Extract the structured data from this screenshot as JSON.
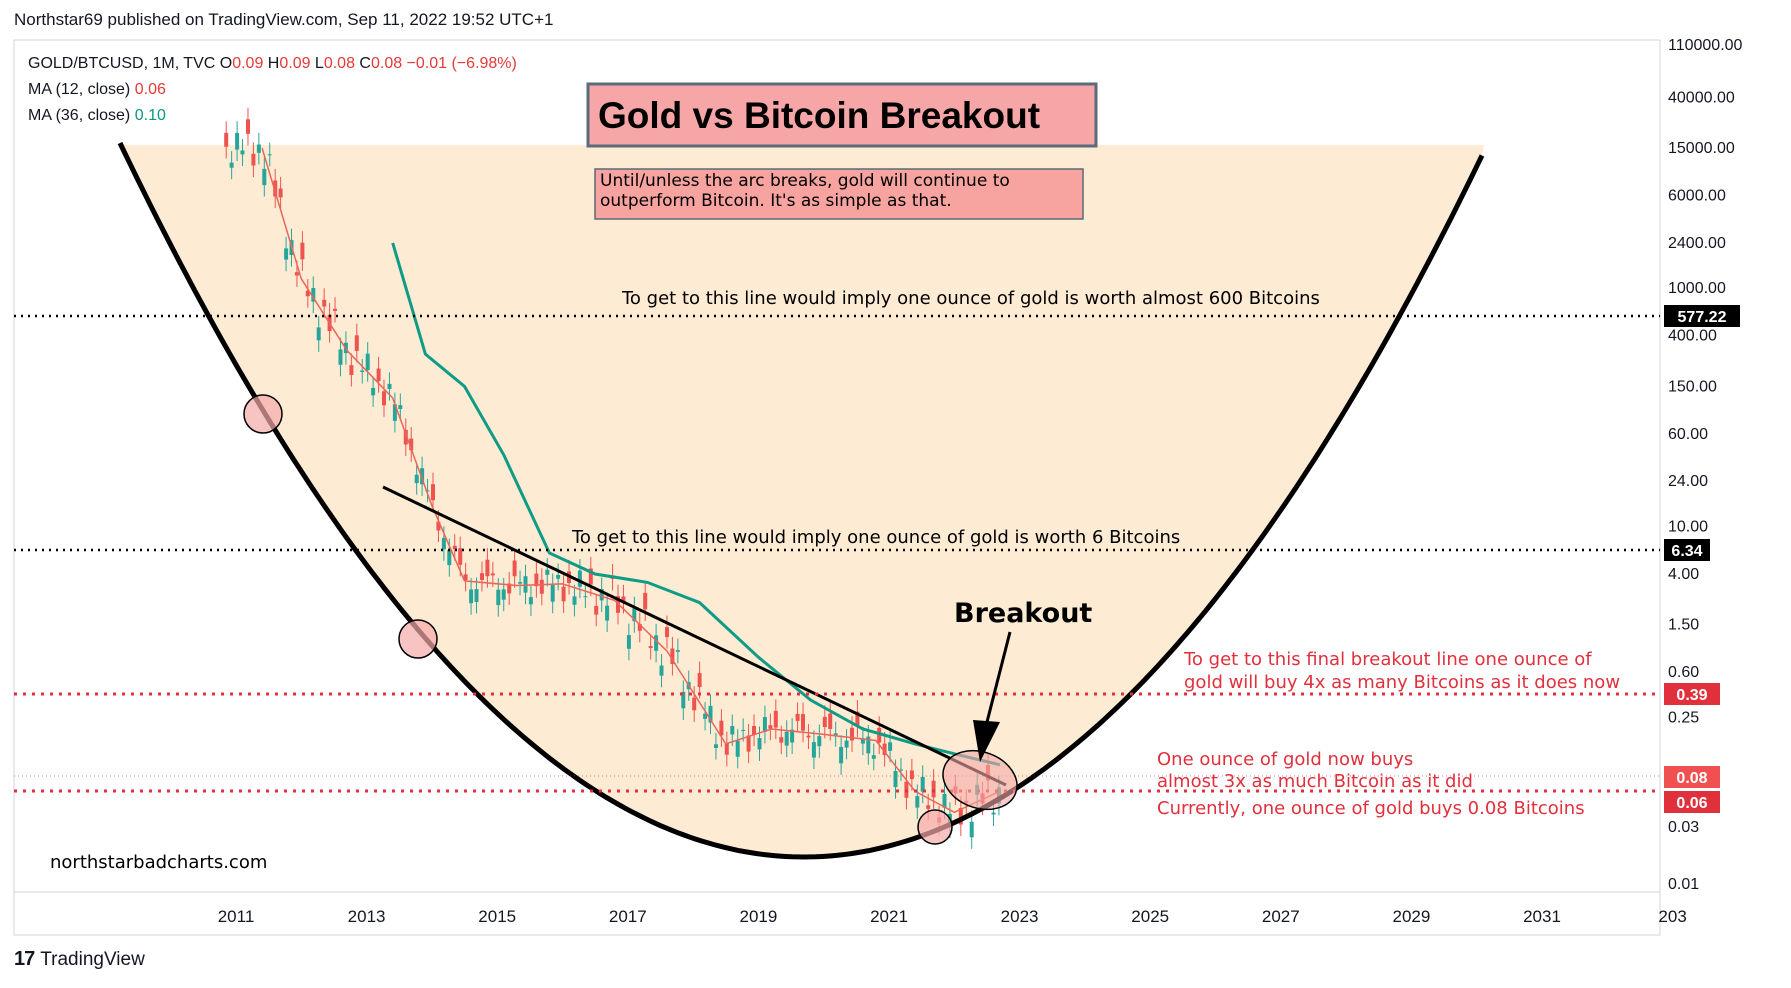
{
  "header": {
    "published": "Northstar69 published on TradingView.com, Sep 11, 2022 19:52 UTC+1"
  },
  "legend": {
    "symbol": "GOLD/BTCUSD, 1M, TVC",
    "ohlc": [
      {
        "k": "O",
        "v": "0.09"
      },
      {
        "k": "H",
        "v": "0.09"
      },
      {
        "k": "L",
        "v": "0.08"
      },
      {
        "k": "C",
        "v": "0.08"
      }
    ],
    "change": "−0.01 (−6.98%)",
    "ma12_label": "MA (12, close)",
    "ma12_value": "0.06",
    "ma36_label": "MA (36, close)",
    "ma36_value": "0.10"
  },
  "colors": {
    "up": "#26a69a",
    "down": "#ef5350",
    "ma12": "#e8665a",
    "ma36": "#0f9b86",
    "fill": "#fdebd3",
    "redline": "#e0303c",
    "title_bg": "#f6a6a6",
    "note_bg": "#f7a3a0"
  },
  "chart_data": {
    "type": "line",
    "title": "Gold vs Bitcoin Breakout",
    "y_scale": "log",
    "y_ticks": [
      "110000.00",
      "40000.00",
      "15000.00",
      "6000.00",
      "2400.00",
      "1000.00",
      "400.00",
      "150.00",
      "60.00",
      "24.00",
      "10.00",
      "4.00",
      "1.50",
      "0.60",
      "0.25",
      "0.03",
      "0.01"
    ],
    "x_ticks": [
      "2011",
      "2013",
      "2015",
      "2017",
      "2019",
      "2021",
      "2023",
      "2025",
      "2027",
      "2029",
      "2031",
      "203"
    ],
    "series": [
      {
        "name": "MA (12, close)",
        "x": [
          2011.4,
          2012.0,
          2012.7,
          2013.4,
          2014.0,
          2014.5,
          2015.3,
          2016.0,
          2016.8,
          2017.6,
          2018.5,
          2019.2,
          2020.0,
          2020.8,
          2021.4,
          2022.0,
          2022.7
        ],
        "y": [
          15000,
          1200,
          300,
          120,
          15,
          3.5,
          3.2,
          3.3,
          2.4,
          0.9,
          0.15,
          0.2,
          0.18,
          0.16,
          0.06,
          0.04,
          0.06
        ]
      },
      {
        "name": "MA (36, close)",
        "x": [
          2013.4,
          2013.9,
          2014.5,
          2015.1,
          2015.8,
          2016.5,
          2017.3,
          2018.1,
          2019.0,
          2019.8,
          2020.6,
          2021.4,
          2022.1,
          2022.7
        ],
        "y": [
          2400,
          280,
          150,
          40,
          6,
          4,
          3.4,
          2.3,
          0.8,
          0.35,
          0.2,
          0.15,
          0.12,
          0.1
        ]
      }
    ],
    "annotations": {
      "note": "Until/unless the arc breaks, gold will continue to outperform Bitcoin. It's as simple as that.",
      "line1_text": "To get to this line would imply one ounce of gold is worth almost 600 Bitcoins",
      "line1_value": "577.22",
      "line2_text": "To get to this line would imply one ounce of gold is worth 6 Bitcoins",
      "line2_value": "6.34",
      "breakout_label": "Breakout",
      "final_line_text_1": "To get to this final breakout line one ounce of",
      "final_line_text_2": "gold will buy 4x as many Bitcoins as it does now",
      "final_line_value": "0.39",
      "now_text_1": "One ounce of gold now buys",
      "now_text_2": "almost 3x as much Bitcoin as it did",
      "now_text_3": "Currently, one ounce of gold buys 0.08 Bitcoins",
      "current_value": "0.08",
      "past_value": "0.06",
      "watermark": "northstarbadcharts.com"
    }
  },
  "footer": {
    "brand": "TradingView"
  }
}
